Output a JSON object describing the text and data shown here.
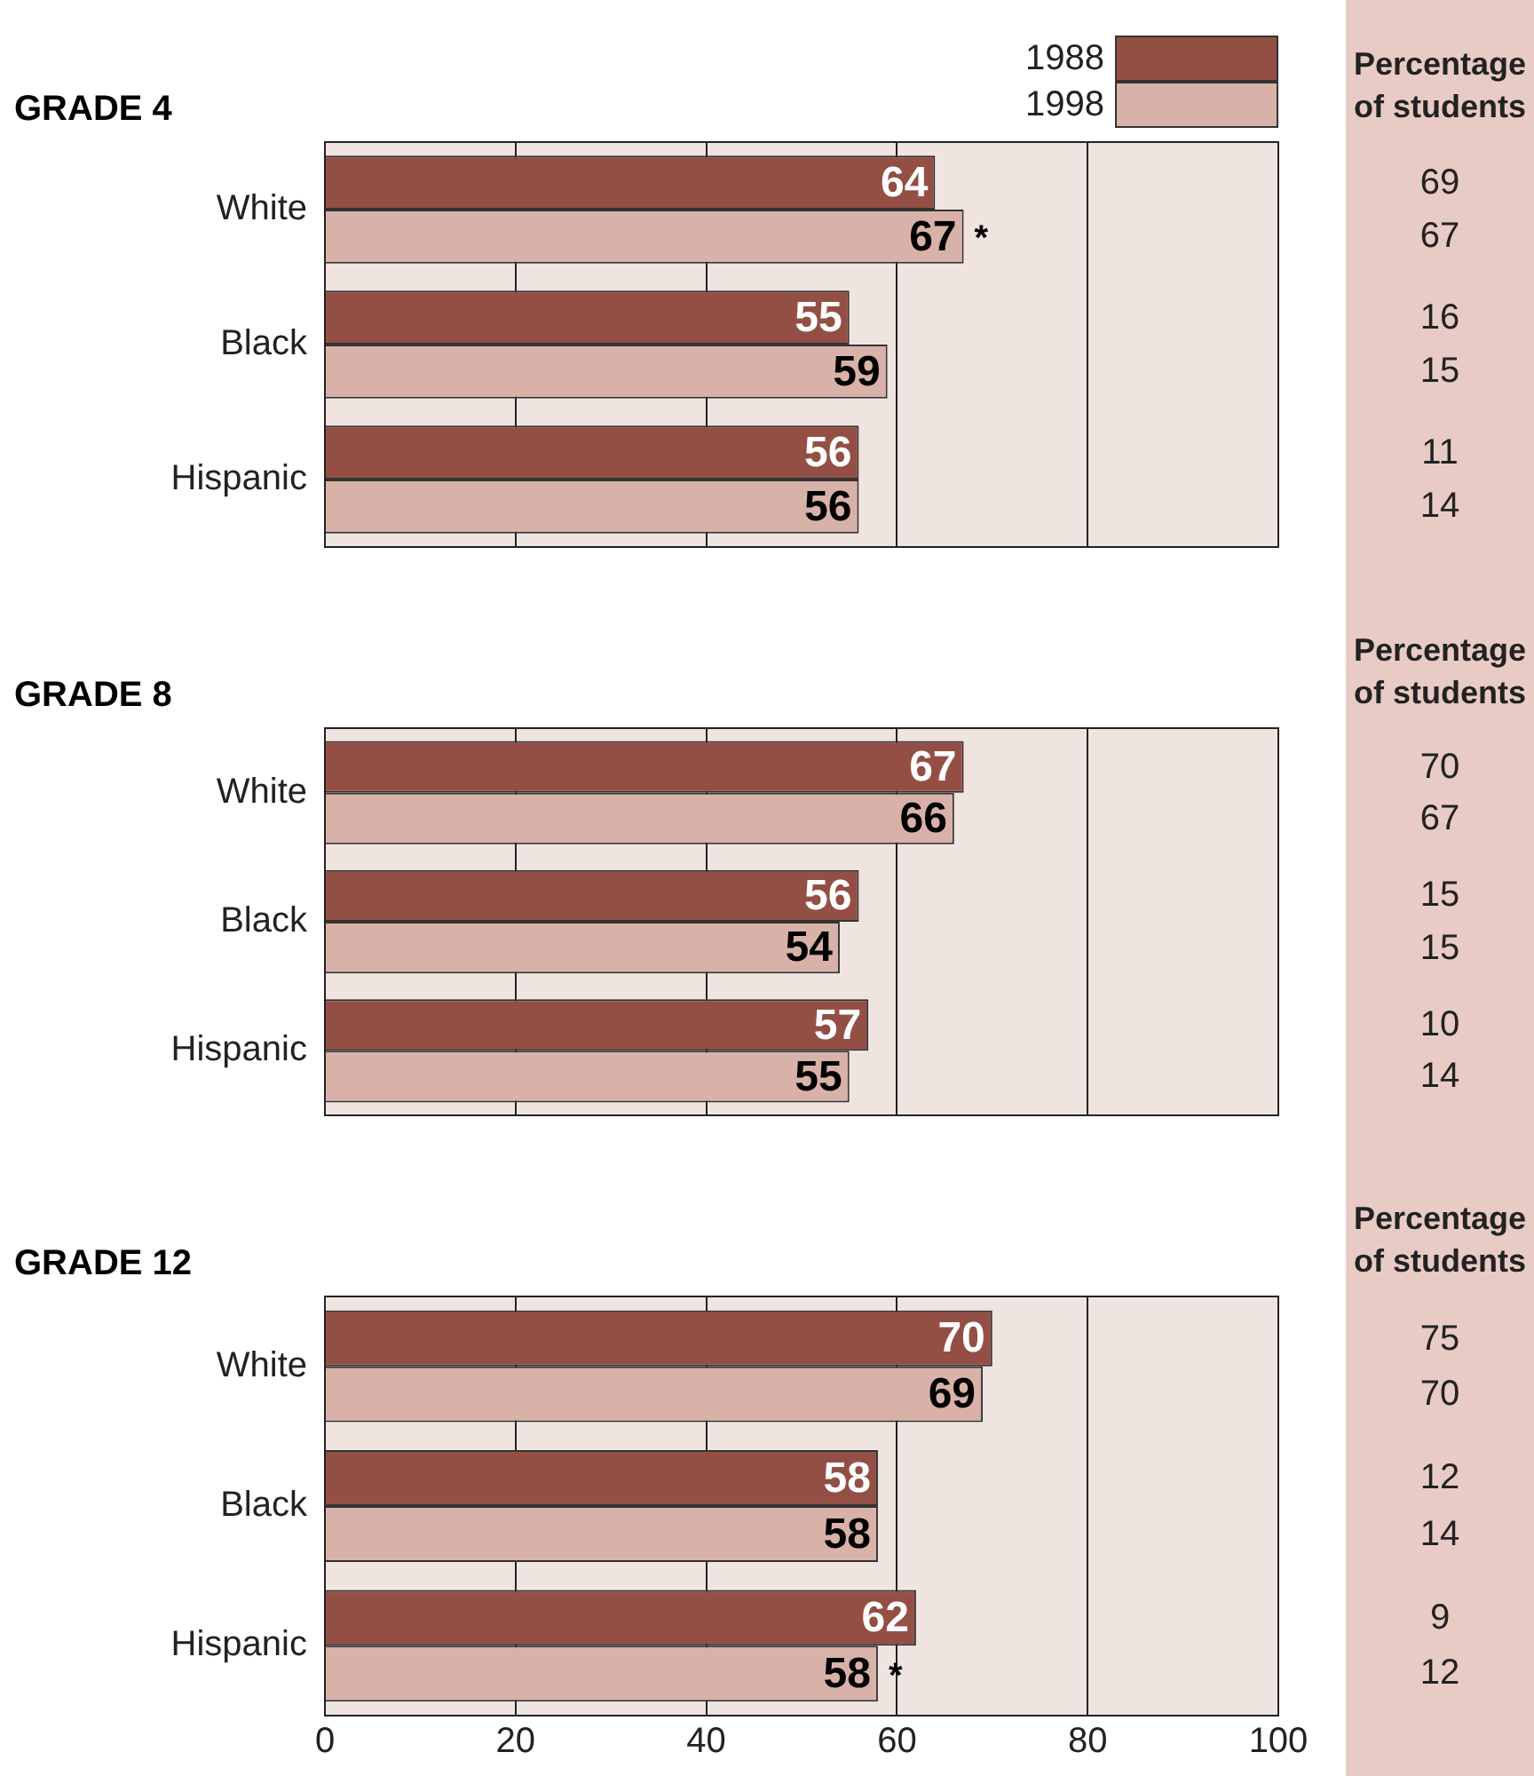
{
  "chart_data": [
    {
      "type": "bar",
      "orientation": "horizontal",
      "title": "GRADE 4",
      "categories": [
        "White",
        "Black",
        "Hispanic"
      ],
      "series": [
        {
          "name": "1988",
          "color": "#944f45",
          "values": [
            64,
            55,
            56
          ]
        },
        {
          "name": "1998",
          "color": "#d8b2a8",
          "values": [
            67,
            59,
            56
          ]
        }
      ],
      "xlim": [
        0,
        100
      ],
      "xticks": [
        0,
        20,
        40,
        60,
        80,
        100
      ],
      "grid": "x",
      "legend": "top right",
      "data_labels": true,
      "tick_labels": "y",
      "annotations": [
        "Percentage of students",
        "69",
        "67",
        "16",
        "15",
        "11",
        "14",
        {
          "text": "*",
          "x": 67,
          "y": "White"
        }
      ]
    },
    {
      "type": "bar",
      "orientation": "horizontal",
      "title": "GRADE 8",
      "categories": [
        "White",
        "Black",
        "Hispanic"
      ],
      "series": [
        {
          "color": "#944f45",
          "values": [
            67,
            56,
            57
          ]
        },
        {
          "color": "#d8b2a8",
          "values": [
            66,
            54,
            55
          ]
        }
      ],
      "xlim": [
        0,
        100
      ],
      "xticks": [
        0,
        20,
        40,
        60,
        80,
        100
      ],
      "grid": "x",
      "data_labels": true,
      "tick_labels": "y",
      "annotations": [
        "Percentage of students",
        "70",
        "67",
        "15",
        "15",
        "10",
        "14"
      ]
    },
    {
      "type": "bar",
      "orientation": "horizontal",
      "title": "GRADE 12",
      "categories": [
        "White",
        "Black",
        "Hispanic"
      ],
      "series": [
        {
          "color": "#944f45",
          "values": [
            70,
            58,
            62
          ]
        },
        {
          "color": "#d8b2a8",
          "values": [
            69,
            58,
            58
          ]
        }
      ],
      "xlim": [
        0,
        100
      ],
      "xticks": [
        0,
        20,
        40,
        60,
        80,
        100
      ],
      "grid": "x",
      "data_labels": true,
      "annotations": [
        "Percentage of students",
        "75",
        "70",
        "12",
        "14",
        "9",
        "12",
        {
          "text": "*",
          "x": 58,
          "y": "Hispanic"
        }
      ]
    }
  ]
}
